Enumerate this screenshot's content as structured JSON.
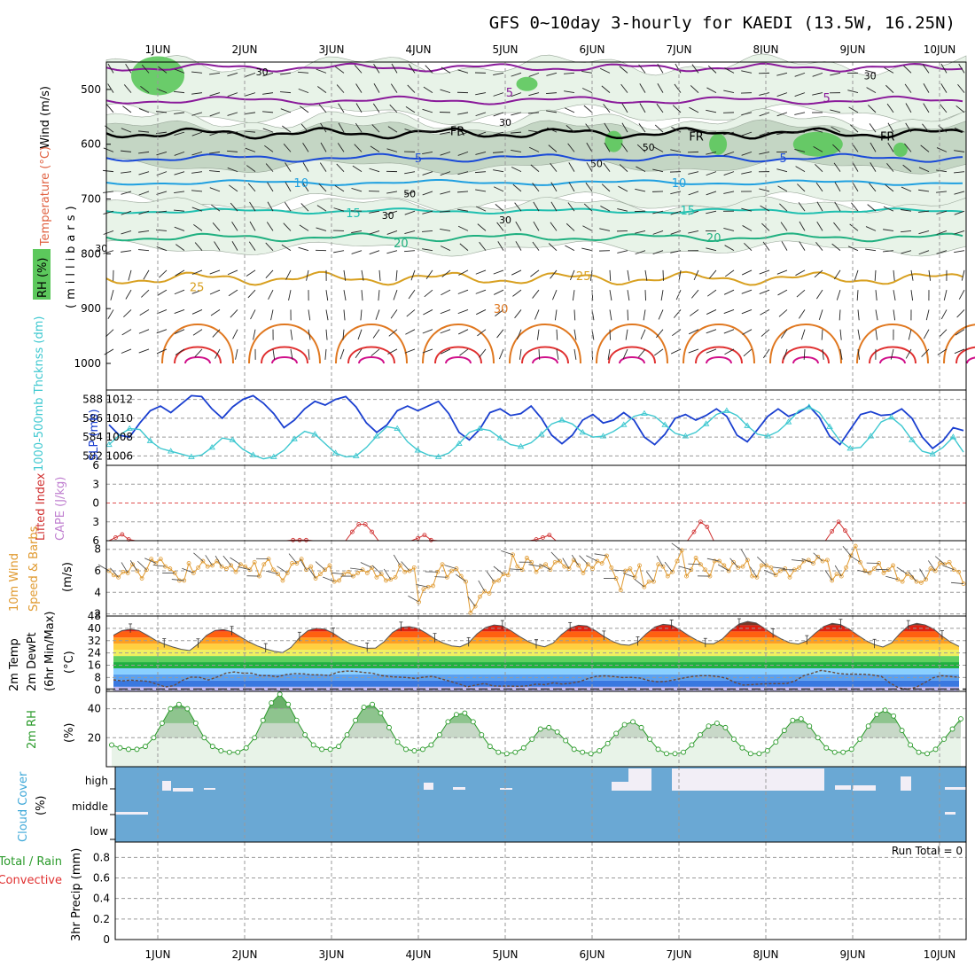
{
  "title": "GFS 0~10day 3-hourly for KAEDI (13.5W, 16.25N)",
  "days": [
    "1JUN",
    "2JUN",
    "3JUN",
    "4JUN",
    "5JUN",
    "6JUN",
    "7JUN",
    "8JUN",
    "9JUN",
    "10JUN"
  ],
  "colors": {
    "rh_fill": "#5cc85c",
    "rh_light": "#e8f3e8",
    "rh_mid": "#c4d6c4",
    "slp": "#1a3fd0",
    "thickness": "#3ec8d0",
    "lifted": "#d03030",
    "cape": "#c080d0",
    "wind10": "#e09a30",
    "rh2m": "#2a9a2a",
    "cloud": "#6aa8d4",
    "cloud_gap": "#f2eef6",
    "temp_lines": [
      "#8a1a9a",
      "#1a4ad8",
      "#20a0e0",
      "#20c0b0",
      "#20b080",
      "#d8a020",
      "#e07820",
      "#e03030",
      "#d0108a"
    ]
  },
  "panel_labels": {
    "upper_wind": "Wind (m/s)",
    "upper_temp": "Temperature (°C)",
    "upper_rh": "RH (%)",
    "upper_units": "(millibars)",
    "slp": "SLP (mb)",
    "thickness": "1000-500mb Thcknss (dm)",
    "lifted": "Lifted Index",
    "cape": "CAPE (J/kg)",
    "wind10": "10m Wind",
    "wind10_b": "Speed & Barbs",
    "wind10_units": "(m/s)",
    "temp2m": "2m Temp",
    "dewpt2m": "2m DewPt",
    "temp2m_b": "(6hr Min/Max)",
    "temp2m_units": "(°C)",
    "rh2m": "2m RH",
    "rh2m_units": "(%)",
    "cloud": "Cloud Cover",
    "cloud_units": "(%)",
    "precip_a": "Total / Rain",
    "precip_b": "Convective",
    "precip_c": "3hr Precip (mm)",
    "run_total": "Run Total = 0"
  },
  "chart_data": [
    {
      "type": "heatmap",
      "name": "upper-air",
      "y_ticks": [
        "500",
        "600",
        "700",
        "800",
        "900",
        "1000"
      ],
      "ylim": [
        1000,
        450
      ],
      "contour_labels": [
        {
          "text": "5",
          "day": 4.05,
          "p": 505
        },
        {
          "text": "5",
          "day": 7.7,
          "p": 515
        },
        {
          "text": "FR",
          "day": 3.45,
          "p": 575
        },
        {
          "text": "FR",
          "day": 6.2,
          "p": 585
        },
        {
          "text": "FR",
          "day": 8.4,
          "p": 585
        },
        {
          "text": "5",
          "day": 3.0,
          "p": 625
        },
        {
          "text": "5",
          "day": 7.2,
          "p": 625
        },
        {
          "text": "10",
          "day": 1.65,
          "p": 670
        },
        {
          "text": "10",
          "day": 6.0,
          "p": 670
        },
        {
          "text": "15",
          "day": 2.25,
          "p": 725
        },
        {
          "text": "15",
          "day": 6.1,
          "p": 720
        },
        {
          "text": "20",
          "day": 2.8,
          "p": 780
        },
        {
          "text": "20",
          "day": 6.4,
          "p": 770
        },
        {
          "text": "25",
          "day": 0.45,
          "p": 860
        },
        {
          "text": "25",
          "day": 4.9,
          "p": 840
        },
        {
          "text": "30",
          "day": 3.95,
          "p": 900
        }
      ],
      "rh_labels": [
        {
          "text": "30",
          "day": 1.2,
          "p": 468
        },
        {
          "text": "30",
          "day": 4.0,
          "p": 560
        },
        {
          "text": "30",
          "day": 8.2,
          "p": 475
        },
        {
          "text": "50",
          "day": 5.05,
          "p": 635
        },
        {
          "text": "50",
          "day": 2.9,
          "p": 690
        },
        {
          "text": "50",
          "day": 5.65,
          "p": 605
        },
        {
          "text": "30",
          "day": 2.65,
          "p": 730
        },
        {
          "text": "30",
          "day": -0.65,
          "p": 790
        },
        {
          "text": "30",
          "day": 4.0,
          "p": 738
        }
      ]
    },
    {
      "type": "line",
      "name": "slp-thickness",
      "y_left_ticks": [
        "582",
        "584",
        "586",
        "588"
      ],
      "y_right_ticks": [
        "1006",
        "1008",
        "1010",
        "1012"
      ],
      "ylim_slp": [
        1005,
        1013
      ],
      "series": [
        {
          "name": "SLP (mb)",
          "values": [
            1009.3,
            1008.2,
            1008.0,
            1009.5,
            1010.8,
            1011.3,
            1010.6,
            1011.5,
            1012.4,
            1012.3,
            1011.0,
            1010.0,
            1011.2,
            1012.0,
            1012.4,
            1011.6,
            1010.5,
            1009.0,
            1009.8,
            1011.0,
            1011.8,
            1011.4,
            1012.0,
            1012.3,
            1011.2,
            1009.5,
            1008.5,
            1009.3,
            1010.8,
            1011.3,
            1010.8,
            1011.3,
            1011.8,
            1010.5,
            1008.5,
            1007.7,
            1008.8,
            1010.6,
            1011.0,
            1010.3,
            1010.5,
            1011.3,
            1010.0,
            1008.2,
            1007.3,
            1008.2,
            1009.8,
            1010.4,
            1009.5,
            1009.8,
            1010.6,
            1009.8,
            1008.0,
            1007.2,
            1008.3,
            1010.0,
            1010.4,
            1009.8,
            1010.3,
            1011.0,
            1010.2,
            1008.2,
            1007.5,
            1008.8,
            1010.2,
            1011.0,
            1010.2,
            1010.6,
            1011.3,
            1010.1,
            1008.1,
            1007.2,
            1008.8,
            1010.4,
            1010.7,
            1010.3,
            1010.4,
            1011.0,
            1010.0,
            1008.0,
            1006.8,
            1007.6,
            1009.0,
            1008.7
          ]
        },
        {
          "name": "1000-500mb Thcknss (dm)",
          "values": [
            583.2,
            584.2,
            584.9,
            584.8,
            583.6,
            582.8,
            582.5,
            582.2,
            581.9,
            582.1,
            582.9,
            583.9,
            583.7,
            582.7,
            582.1,
            581.7,
            581.9,
            582.6,
            583.8,
            584.6,
            584.3,
            583.3,
            582.3,
            581.9,
            582.0,
            582.9,
            584.1,
            585.1,
            584.9,
            583.5,
            582.6,
            582.1,
            581.9,
            582.3,
            583.3,
            584.5,
            584.9,
            584.7,
            583.9,
            583.2,
            583.0,
            583.4,
            584.3,
            585.4,
            585.8,
            585.4,
            584.5,
            584.0,
            584.1,
            584.6,
            585.3,
            586.2,
            586.5,
            586.2,
            585.3,
            584.4,
            584.1,
            584.5,
            585.4,
            586.4,
            586.8,
            586.3,
            585.2,
            584.3,
            584.1,
            584.6,
            585.6,
            586.8,
            587.2,
            586.6,
            585.1,
            583.6,
            582.8,
            582.9,
            584.1,
            585.6,
            586.1,
            585.2,
            583.7,
            582.5,
            582.2,
            582.9,
            584.0,
            582.4
          ]
        }
      ]
    },
    {
      "type": "line",
      "name": "lifted-cape",
      "y_ticks": [
        "-6",
        "-3",
        "0",
        "3",
        "6"
      ],
      "ylim": [
        6,
        -6
      ],
      "series": [
        {
          "name": "Lifted Index",
          "values": [
            6,
            5.5,
            5.0,
            5.8,
            6,
            6,
            6,
            6,
            6,
            6,
            6,
            6,
            6,
            6,
            6,
            6,
            6,
            6,
            6,
            6,
            6,
            6,
            6,
            6,
            6,
            6,
            6,
            6,
            5.9,
            5.9,
            5.9,
            6,
            6,
            6,
            6,
            6,
            6,
            4.6,
            3.4,
            3.4,
            4.6,
            6,
            6,
            6,
            6,
            6,
            6,
            5.6,
            5.1,
            5.9,
            6,
            6,
            6,
            6,
            6,
            6,
            6,
            6,
            6,
            6,
            6,
            6,
            6,
            6,
            6,
            5.8,
            5.5,
            5.1,
            6,
            6,
            6,
            6,
            6,
            6,
            6,
            6,
            6,
            6,
            6,
            6,
            6,
            6,
            6,
            6,
            6,
            6,
            6,
            6,
            6,
            4.6,
            3.0,
            3.8,
            6,
            6,
            6,
            6,
            6,
            6,
            6,
            6,
            6,
            6,
            6,
            6,
            6,
            6,
            6,
            6,
            6,
            6,
            4.5,
            3.0,
            4.4,
            6,
            6,
            6,
            6,
            6,
            6,
            6,
            6,
            6,
            6,
            6,
            6,
            6,
            6,
            6,
            6,
            6,
            6
          ]
        }
      ]
    },
    {
      "type": "line",
      "name": "wind10m",
      "y_ticks": [
        "2",
        "4",
        "6",
        "8"
      ],
      "ylim": [
        1.8,
        8.8
      ],
      "series": [
        {
          "name": "10m Wind Speed",
          "values": [
            6.0,
            5.6,
            5.4,
            5.9,
            5.8,
            6.6,
            6.0,
            5.3,
            6.1,
            7.1,
            6.7,
            7.1,
            6.4,
            6.2,
            5.8,
            5.1,
            5.1,
            6.7,
            5.8,
            6.3,
            6.9,
            6.4,
            6.5,
            6.9,
            6.4,
            6.2,
            6.5,
            5.9,
            6.6,
            6.4,
            6.1,
            6.8,
            5.5,
            6.6,
            7.1,
            6.1,
            5.7,
            5.1,
            5.8,
            6.7,
            6.7,
            7.1,
            6.1,
            6.4,
            5.3,
            5.7,
            6.1,
            6.5,
            5.0,
            5.1,
            5.7,
            5.9,
            5.5,
            5.8,
            6.1,
            5.8,
            6.3,
            5.4,
            5.7,
            5.1,
            5.2,
            5.4,
            6.5,
            5.9,
            6.0,
            6.3,
            3.1,
            4.3,
            4.5,
            4.6,
            5.9,
            6.6,
            5.4,
            6.0,
            6.2,
            5.5,
            5.0,
            2.1,
            2.7,
            3.6,
            4.1,
            3.9,
            5.0,
            5.1,
            5.7,
            5.6,
            7.5,
            6.4,
            6.1,
            7.2,
            6.8,
            5.9,
            6.4,
            6.6,
            6.1,
            6.8,
            6.9,
            6.4,
            6.2,
            7.0,
            6.5,
            5.8,
            6.6,
            6.2,
            6.9,
            6.7,
            7.4,
            6.3,
            5.3,
            4.2,
            6.0,
            6.2,
            5.4,
            6.5,
            4.5,
            5.0,
            5.0,
            6.6,
            6.4,
            5.5,
            5.9,
            6.9,
            7.9,
            5.5,
            6.1,
            7.2,
            6.6,
            6.1,
            5.5,
            6.9,
            6.9,
            6.5,
            6.0,
            6.8,
            6.3,
            6.4,
            7.0,
            5.5,
            5.4,
            6.5,
            6.5,
            6.3,
            5.6,
            6.0,
            6.2,
            5.4,
            6.1,
            6.3,
            6.9,
            7.0,
            6.7,
            7.3,
            6.9,
            7.0,
            5.1,
            5.7,
            5.5,
            6.3,
            7.4,
            8.3,
            6.8,
            6.0,
            5.8,
            6.2,
            6.7,
            5.8,
            6.1,
            6.5,
            5.2,
            5.0,
            5.7,
            5.4,
            5.0,
            4.9,
            5.2,
            6.2,
            6.0,
            6.7,
            6.6,
            6.8,
            6.1,
            5.9,
            4.8
          ]
        }
      ]
    },
    {
      "type": "area",
      "name": "temp2m",
      "y_ticks": [
        "0",
        "8",
        "16",
        "24",
        "32",
        "40",
        "48"
      ],
      "ylim": [
        -1,
        48
      ],
      "series": [
        {
          "name": "2m Temp",
          "values": [
            35.5,
            38.5,
            39.4,
            38.6,
            35.5,
            32.2,
            29.8,
            27.9,
            26.4,
            25.5,
            29.7,
            35.4,
            38.6,
            39.2,
            37.8,
            34.5,
            31.3,
            28.6,
            26.6,
            25.1,
            24.2,
            27.6,
            34.0,
            38.5,
            40.0,
            39.4,
            36.8,
            33.0,
            30.0,
            28.2,
            27.0,
            27.2,
            31.3,
            37.2,
            40.6,
            41.1,
            40.0,
            36.8,
            33.2,
            30.4,
            28.6,
            28.0,
            30.5,
            36.4,
            40.5,
            42.2,
            41.6,
            38.5,
            34.8,
            31.5,
            29.2,
            28.0,
            30.4,
            36.0,
            40.3,
            42.0,
            41.5,
            38.5,
            34.8,
            31.5,
            29.5,
            29.0,
            31.0,
            36.4,
            40.8,
            42.6,
            42.0,
            39.0,
            35.4,
            32.2,
            30.0,
            30.0,
            33.0,
            38.6,
            42.8,
            44.5,
            43.5,
            40.0,
            36.2,
            33.0,
            30.6,
            29.8,
            31.8,
            36.8,
            41.2,
            43.2,
            42.4,
            39.5,
            35.6,
            32.0,
            29.4,
            27.8,
            30.4,
            36.6,
            41.6,
            43.2,
            42.2,
            39.5,
            35.0,
            31.0,
            28.2
          ]
        },
        {
          "name": "2m DewPt",
          "values": [
            6.5,
            5.8,
            6.3,
            5.9,
            5.6,
            3.8,
            1.9,
            2.7,
            6.2,
            8.3,
            8.1,
            6.4,
            8.3,
            10.8,
            11.6,
            10.9,
            10.8,
            9.3,
            9.2,
            8.5,
            9.9,
            10.6,
            10.4,
            9.8,
            9.7,
            9.3,
            11.5,
            12.2,
            12.1,
            11.3,
            10.9,
            9.3,
            8.6,
            8.3,
            8.0,
            7.4,
            8.3,
            8.8,
            7.1,
            5.6,
            3.9,
            2.0,
            3.1,
            4.2,
            2.5,
            2.4,
            2.4,
            2.3,
            2.6,
            3.7,
            3.3,
            4.6,
            3.7,
            4.3,
            5.3,
            7.3,
            8.8,
            9.1,
            8.6,
            8.0,
            8.1,
            7.7,
            6.1,
            5.2,
            5.5,
            6.5,
            7.6,
            8.6,
            9.2,
            9.2,
            8.7,
            7.6,
            4.9,
            3.1,
            3.4,
            3.8,
            4.0,
            4.0,
            4.1,
            5.8,
            9.2,
            10.8,
            12.6,
            11.8,
            10.7,
            10.2,
            10.2,
            10.1,
            9.6,
            8.7,
            4.4,
            1.3,
            0.3,
            1.6,
            4.6,
            7.8,
            9.2,
            8.7,
            8.2
          ]
        }
      ]
    },
    {
      "type": "area",
      "name": "rh2m",
      "y_ticks": [
        "20",
        "40"
      ],
      "ylim": [
        0,
        52
      ],
      "series": [
        {
          "name": "2m RH",
          "values": [
            15,
            13,
            12,
            12,
            14,
            20,
            30,
            40,
            43,
            40,
            30,
            20,
            14,
            11,
            10,
            10,
            13,
            20,
            32,
            44,
            50,
            43,
            32,
            22,
            15,
            12,
            12,
            14,
            22,
            32,
            41,
            43,
            37,
            27,
            17,
            12,
            11,
            12,
            15,
            22,
            31,
            36,
            37,
            31,
            22,
            14,
            10,
            9,
            10,
            13,
            19,
            26,
            27,
            24,
            18,
            12,
            10,
            9,
            11,
            16,
            23,
            29,
            31,
            27,
            19,
            12,
            9,
            9,
            10,
            15,
            22,
            28,
            30,
            27,
            19,
            13,
            9,
            9,
            11,
            17,
            25,
            32,
            33,
            28,
            20,
            13,
            10,
            10,
            12,
            19,
            28,
            36,
            39,
            35,
            25,
            15,
            10,
            9,
            12,
            19,
            26,
            33
          ]
        }
      ]
    },
    {
      "type": "area",
      "name": "cloud-cover",
      "y_ticks": [
        "high",
        "middle",
        "low"
      ],
      "ylim": [
        0,
        100
      ]
    },
    {
      "type": "bar",
      "name": "precip",
      "y_ticks": [
        "0",
        "0.2",
        "0.4",
        "0.6",
        "0.8"
      ],
      "ylim": [
        0,
        0.95
      ],
      "values": []
    }
  ]
}
